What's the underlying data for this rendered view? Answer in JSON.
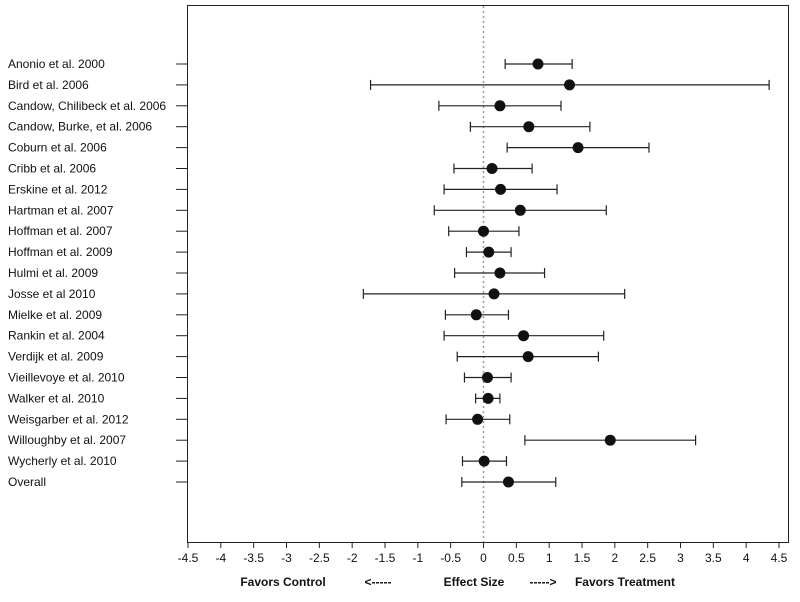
{
  "chart_data": {
    "type": "forest",
    "title": "",
    "xlabel_parts": [
      "Favors Control",
      "<-----",
      "Effect Size",
      "----->",
      "Favors Treatment"
    ],
    "xlim": [
      -4.5,
      4.5
    ],
    "xticks": [
      "-4.5",
      "-4",
      "-3.5",
      "-3",
      "-2.5",
      "-2",
      "-1.5",
      "-1",
      "-0.5",
      "0",
      "0.5",
      "1",
      "1.5",
      "2",
      "2.5",
      "3",
      "3.5",
      "4",
      "4.5"
    ],
    "reference_line": 0,
    "studies": [
      {
        "label": "Anonio et al. 2000",
        "effect": 0.83,
        "lower": 0.33,
        "upper": 1.35
      },
      {
        "label": "Bird et al. 2006",
        "effect": 1.31,
        "lower": -1.72,
        "upper": 4.35
      },
      {
        "label": "Candow, Chilibeck et al. 2006",
        "effect": 0.25,
        "lower": -0.68,
        "upper": 1.18
      },
      {
        "label": "Candow, Burke, et al. 2006",
        "effect": 0.69,
        "lower": -0.2,
        "upper": 1.62
      },
      {
        "label": "Coburn et al. 2006",
        "effect": 1.44,
        "lower": 0.36,
        "upper": 2.52
      },
      {
        "label": "Cribb et al. 2006",
        "effect": 0.13,
        "lower": -0.45,
        "upper": 0.74
      },
      {
        "label": "Erskine et al. 2012",
        "effect": 0.26,
        "lower": -0.6,
        "upper": 1.12
      },
      {
        "label": "Hartman et al. 2007",
        "effect": 0.56,
        "lower": -0.75,
        "upper": 1.87
      },
      {
        "label": "Hoffman et al. 2007",
        "effect": 0.0,
        "lower": -0.53,
        "upper": 0.54
      },
      {
        "label": "Hoffman et al. 2009",
        "effect": 0.08,
        "lower": -0.26,
        "upper": 0.42
      },
      {
        "label": "Hulmi et al. 2009",
        "effect": 0.25,
        "lower": -0.44,
        "upper": 0.93
      },
      {
        "label": "Josse et al 2010",
        "effect": 0.16,
        "lower": -1.83,
        "upper": 2.15
      },
      {
        "label": "Mielke et al. 2009",
        "effect": -0.11,
        "lower": -0.58,
        "upper": 0.38
      },
      {
        "label": "Rankin et al. 2004",
        "effect": 0.61,
        "lower": -0.6,
        "upper": 1.83
      },
      {
        "label": "Verdijk et al. 2009",
        "effect": 0.68,
        "lower": -0.4,
        "upper": 1.75
      },
      {
        "label": "Vieillevoye et al. 2010",
        "effect": 0.06,
        "lower": -0.29,
        "upper": 0.42
      },
      {
        "label": "Walker et al. 2010",
        "effect": 0.07,
        "lower": -0.12,
        "upper": 0.25
      },
      {
        "label": "Weisgarber et al. 2012",
        "effect": -0.09,
        "lower": -0.57,
        "upper": 0.4
      },
      {
        "label": "Willoughby et al. 2007",
        "effect": 1.93,
        "lower": 0.63,
        "upper": 3.23
      },
      {
        "label": "Wycherly et al. 2010",
        "effect": 0.01,
        "lower": -0.32,
        "upper": 0.35
      },
      {
        "label": "Overall",
        "effect": 0.38,
        "lower": -0.33,
        "upper": 1.1
      }
    ]
  }
}
